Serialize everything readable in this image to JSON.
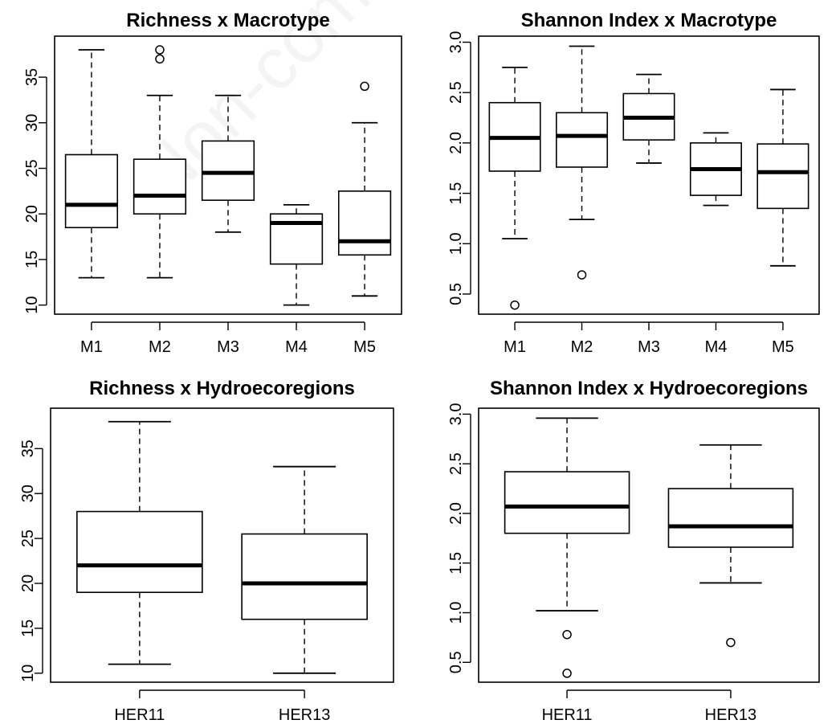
{
  "watermark": "Non-commercial",
  "chart_data": [
    {
      "type": "boxplot",
      "title": "Richness x Macrotype",
      "categories": [
        "M1",
        "M2",
        "M3",
        "M4",
        "M5"
      ],
      "ylim": [
        9,
        39.5
      ],
      "yticks": [
        10,
        15,
        20,
        25,
        30,
        35
      ],
      "ytick_labels": [
        "10",
        "15",
        "20",
        "25",
        "30",
        "35"
      ],
      "boxes": [
        {
          "whisker_low": 13,
          "q1": 18.5,
          "median": 21,
          "q3": 26.5,
          "whisker_high": 38,
          "outliers": []
        },
        {
          "whisker_low": 13,
          "q1": 20,
          "median": 22,
          "q3": 26,
          "whisker_high": 33,
          "outliers": [
            37,
            38
          ]
        },
        {
          "whisker_low": 18,
          "q1": 21.5,
          "median": 24.5,
          "q3": 28,
          "whisker_high": 33,
          "outliers": []
        },
        {
          "whisker_low": 10,
          "q1": 14.5,
          "median": 19,
          "q3": 20,
          "whisker_high": 21,
          "outliers": []
        },
        {
          "whisker_low": 11,
          "q1": 15.5,
          "median": 17,
          "q3": 22.5,
          "whisker_high": 30,
          "outliers": [
            34
          ]
        }
      ]
    },
    {
      "type": "boxplot",
      "title": "Shannon Index x Macrotype",
      "categories": [
        "M1",
        "M2",
        "M3",
        "M4",
        "M5"
      ],
      "ylim": [
        0.3,
        3.06
      ],
      "yticks": [
        0.5,
        1.0,
        1.5,
        2.0,
        2.5,
        3.0
      ],
      "ytick_labels": [
        "0.5",
        "1.0",
        "1.5",
        "2.0",
        "2.5",
        "3.0"
      ],
      "boxes": [
        {
          "whisker_low": 1.05,
          "q1": 1.72,
          "median": 2.05,
          "q3": 2.4,
          "whisker_high": 2.75,
          "outliers": [
            0.39
          ]
        },
        {
          "whisker_low": 1.24,
          "q1": 1.76,
          "median": 2.07,
          "q3": 2.3,
          "whisker_high": 2.96,
          "outliers": [
            0.69
          ]
        },
        {
          "whisker_low": 1.8,
          "q1": 2.03,
          "median": 2.25,
          "q3": 2.49,
          "whisker_high": 2.68,
          "outliers": []
        },
        {
          "whisker_low": 1.38,
          "q1": 1.48,
          "median": 1.74,
          "q3": 2.0,
          "whisker_high": 2.1,
          "outliers": []
        },
        {
          "whisker_low": 0.78,
          "q1": 1.35,
          "median": 1.71,
          "q3": 1.99,
          "whisker_high": 2.53,
          "outliers": []
        }
      ]
    },
    {
      "type": "boxplot",
      "title": "Richness x Hydroecoregions",
      "categories": [
        "HER11",
        "HER13"
      ],
      "ylim": [
        9,
        39.5
      ],
      "yticks": [
        10,
        15,
        20,
        25,
        30,
        35
      ],
      "ytick_labels": [
        "10",
        "15",
        "20",
        "25",
        "30",
        "35"
      ],
      "boxes": [
        {
          "whisker_low": 11,
          "q1": 19,
          "median": 22,
          "q3": 28,
          "whisker_high": 38,
          "outliers": []
        },
        {
          "whisker_low": 10,
          "q1": 16,
          "median": 20,
          "q3": 25.5,
          "whisker_high": 33,
          "outliers": []
        }
      ]
    },
    {
      "type": "boxplot",
      "title": "Shannon Index x Hydroecoregions",
      "categories": [
        "HER11",
        "HER13"
      ],
      "ylim": [
        0.3,
        3.06
      ],
      "yticks": [
        0.5,
        1.0,
        1.5,
        2.0,
        2.5,
        3.0
      ],
      "ytick_labels": [
        "0.5",
        "1.0",
        "1.5",
        "2.0",
        "2.5",
        "3.0"
      ],
      "boxes": [
        {
          "whisker_low": 1.02,
          "q1": 1.8,
          "median": 2.07,
          "q3": 2.42,
          "whisker_high": 2.96,
          "outliers": [
            0.78,
            0.39
          ]
        },
        {
          "whisker_low": 1.3,
          "q1": 1.66,
          "median": 1.87,
          "q3": 2.25,
          "whisker_high": 2.69,
          "outliers": [
            0.7
          ]
        }
      ]
    }
  ]
}
